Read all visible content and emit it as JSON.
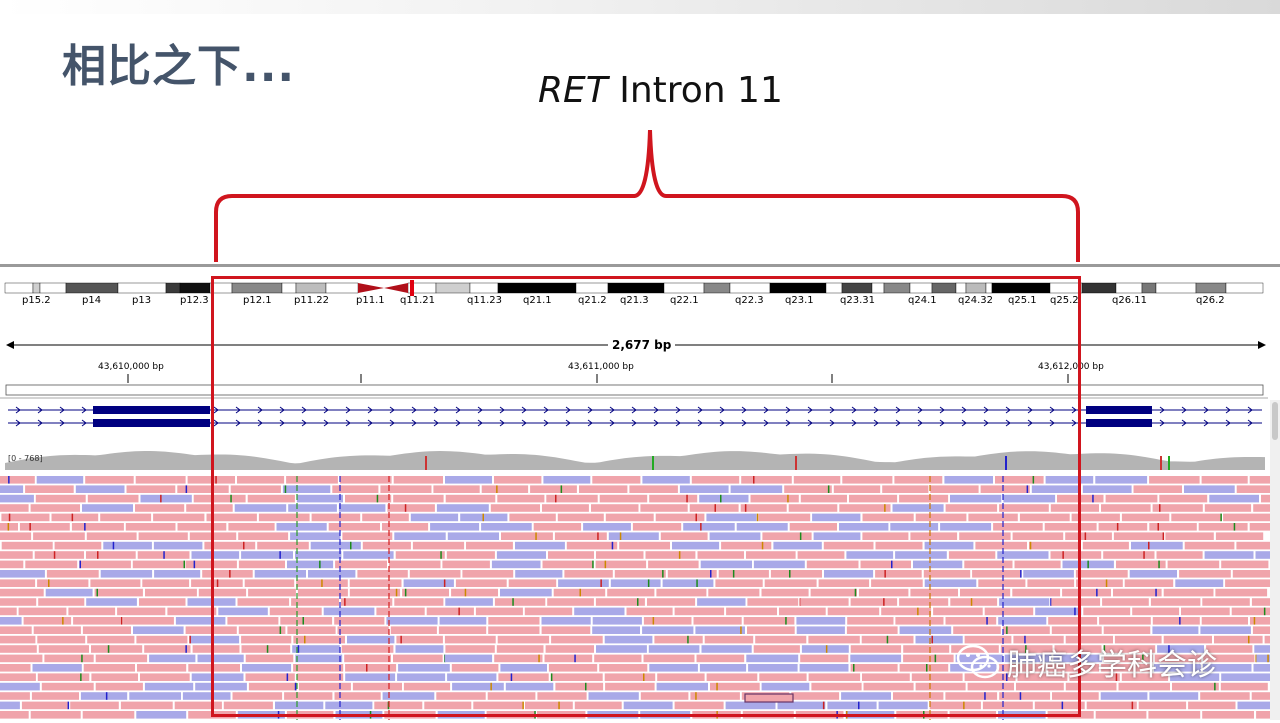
{
  "slide": {
    "title": "相比之下...",
    "annotation_gene": "RET",
    "annotation_region": "Intron 11"
  },
  "igv": {
    "cytobands": [
      "p15.2",
      "p14",
      "p13",
      "p12.3",
      "p12.1",
      "p11.22",
      "p11.1",
      "q11.21",
      "q11.23",
      "q21.1",
      "q21.2",
      "q21.3",
      "q22.1",
      "q22.3",
      "q23.1",
      "q23.31",
      "q24.1",
      "q24.32",
      "q25.1",
      "q25.2",
      "q26.11",
      "q26.2"
    ],
    "span_label": "2,677 bp",
    "ruler_ticks": [
      "43,610,000 bp",
      "43,611,000 bp",
      "43,612,000 bp"
    ],
    "coverage_range": "[0 - 768]"
  },
  "watermark": {
    "text": "肺癌多学科会诊",
    "icon": "wechat-icon"
  },
  "colors": {
    "title": "#44546a",
    "highlight_box": "#d0151e",
    "read_forward": "#f0a4ab",
    "read_reverse": "#a9a9e8",
    "gene_track": "#000080",
    "coverage": "#b4b4b4"
  }
}
